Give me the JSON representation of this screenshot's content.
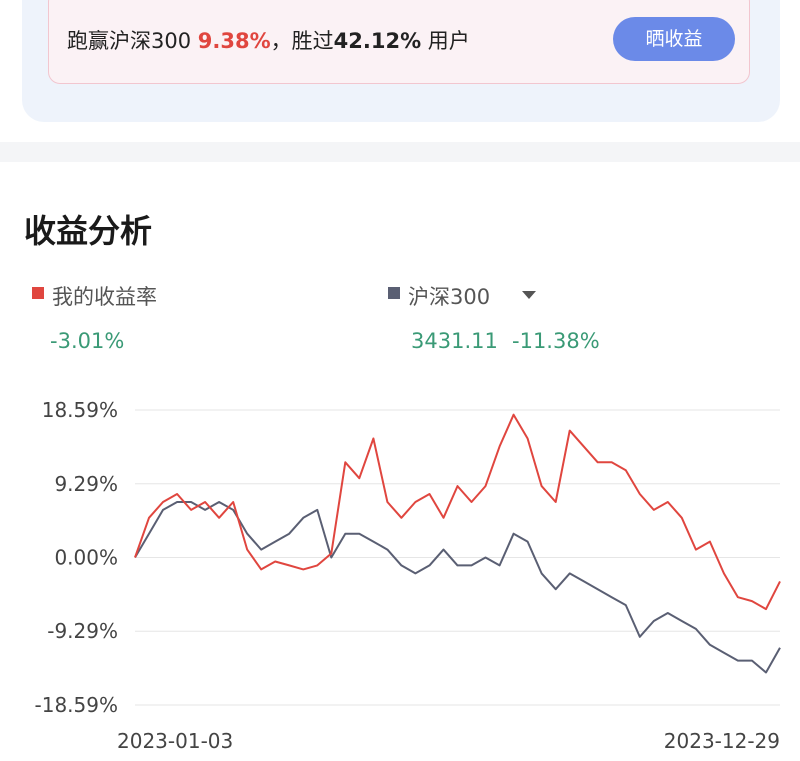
{
  "banner": {
    "prefix": "跑赢沪深300",
    "beat_index": "9.38%",
    "middle": "，胜过",
    "beat_users": "42.12%",
    "suffix": "用户",
    "button": "晒收益"
  },
  "section_title": "收益分析",
  "chart_data": {
    "type": "line",
    "x": [
      "2023-01-03",
      null,
      null,
      null,
      null,
      null,
      null,
      null,
      null,
      null,
      null,
      null,
      null,
      null,
      null,
      null,
      null,
      null,
      null,
      null,
      null,
      null,
      null,
      null,
      null,
      null,
      null,
      null,
      null,
      null,
      null,
      null,
      null,
      null,
      null,
      null,
      null,
      null,
      null,
      null,
      null,
      null,
      null,
      null,
      null,
      null,
      "2023-12-29"
    ],
    "series": [
      {
        "name": "我的收益率",
        "color": "#e0463f",
        "latest": "-3.01%",
        "values": [
          0,
          5,
          7,
          8,
          6,
          7,
          5,
          7,
          1,
          -1.5,
          -0.5,
          -1,
          -1.5,
          -1,
          0.5,
          12,
          10,
          15,
          7,
          5,
          7,
          8,
          5,
          9,
          7,
          9,
          14,
          18,
          15,
          9,
          7,
          16,
          14,
          12,
          12,
          11,
          8,
          6,
          7,
          5,
          1,
          2,
          -2,
          -5,
          -5.5,
          -6.5,
          -3.01
        ]
      },
      {
        "name": "沪深300",
        "color": "#5a5f73",
        "index_value": "3431.11",
        "latest": "-11.38%",
        "values": [
          0,
          3,
          6,
          7,
          7,
          6,
          7,
          6,
          3,
          1,
          2,
          3,
          5,
          6,
          0,
          3,
          3,
          2,
          1,
          -1,
          -2,
          -1,
          1,
          -1,
          -1,
          0,
          -1,
          3,
          2,
          -2,
          -4,
          -2,
          -3,
          -4,
          -5,
          -6,
          -10,
          -8,
          -7,
          -8,
          -9,
          -11,
          -12,
          -13,
          -13,
          -14.5,
          -11.38
        ]
      }
    ],
    "ylim": [
      -18.59,
      18.59
    ],
    "yticks": [
      {
        "value": 18.59,
        "label": "18.59%"
      },
      {
        "value": 9.29,
        "label": "9.29%"
      },
      {
        "value": 0,
        "label": "0.00%"
      },
      {
        "value": -9.29,
        "label": "-9.29%"
      },
      {
        "value": -18.59,
        "label": "-18.59%"
      }
    ],
    "grid": true
  }
}
